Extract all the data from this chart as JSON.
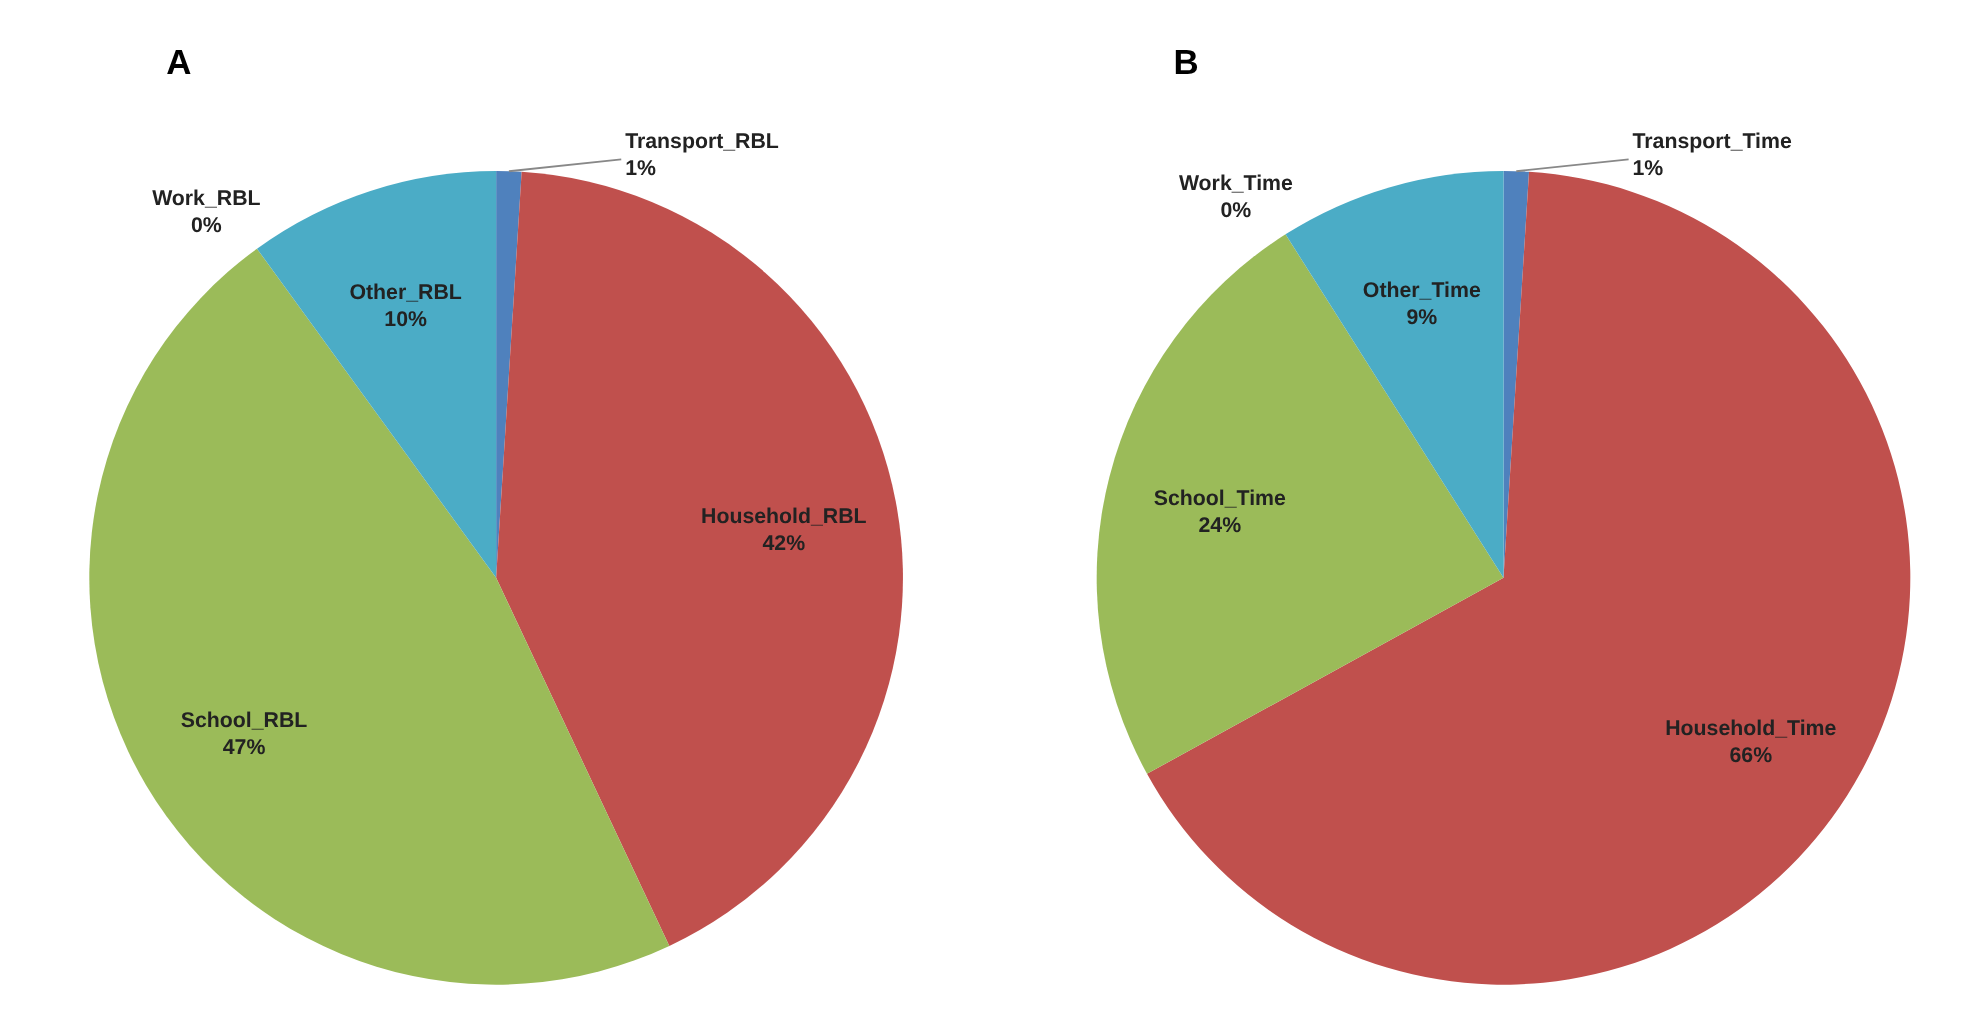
{
  "chart_data": [
    {
      "type": "pie",
      "title": "A",
      "categories": [
        "Transport_RBL",
        "Household_RBL",
        "School_RBL",
        "Work_RBL",
        "Other_RBL"
      ],
      "values": [
        1,
        42,
        47,
        0,
        10
      ],
      "value_labels": [
        "1%",
        "42%",
        "47%",
        "0%",
        "10%"
      ],
      "colors": [
        "#4f81bd",
        "#c0504d",
        "#9bbb59",
        "#8064a2",
        "#4bacc6"
      ]
    },
    {
      "type": "pie",
      "title": "B",
      "categories": [
        "Transport_Time",
        "Household_Time",
        "School_Time",
        "Work_Time",
        "Other_Time"
      ],
      "values": [
        1,
        66,
        24,
        0,
        9
      ],
      "value_labels": [
        "1%",
        "66%",
        "24%",
        "0%",
        "9%"
      ],
      "colors": [
        "#4f81bd",
        "#c0504d",
        "#9bbb59",
        "#8064a2",
        "#4bacc6"
      ]
    }
  ]
}
